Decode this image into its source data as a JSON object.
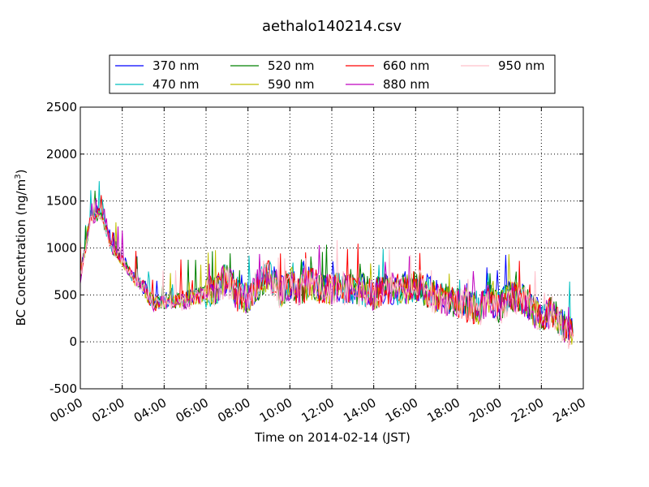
{
  "chart_data": {
    "type": "line",
    "title": "aethalo140214.csv",
    "xlabel": "Time on 2014-02-14 (JST)",
    "ylabel": "BC Concentration (ng/m",
    "ylabel_superscript": "3",
    "ylabel_suffix": ")",
    "xlim": [
      "00:00",
      "24:00"
    ],
    "ylim": [
      -500,
      2500
    ],
    "x_ticks": [
      "00:00",
      "02:00",
      "04:00",
      "06:00",
      "08:00",
      "10:00",
      "12:00",
      "14:00",
      "16:00",
      "18:00",
      "20:00",
      "22:00",
      "24:00"
    ],
    "y_ticks": [
      "-500",
      "0",
      "500",
      "1000",
      "1500",
      "2000",
      "2500"
    ],
    "grid": true,
    "legend_placement": "top-center",
    "x_hours": [
      0,
      0.5,
      1,
      1.5,
      2,
      2.5,
      3,
      3.5,
      4,
      5,
      6,
      6.5,
      7,
      7.5,
      8,
      8.5,
      9,
      9.5,
      10,
      10.5,
      11,
      11.5,
      12,
      12.5,
      13,
      13.5,
      14,
      14.5,
      15,
      15.5,
      16,
      16.5,
      17,
      17.5,
      18,
      18.5,
      19,
      19.5,
      20,
      20.5,
      21,
      21.5,
      22,
      22.5,
      23,
      23.5
    ],
    "series": [
      {
        "name": "370 nm",
        "color": "#0000ff",
        "values": [
          720,
          1350,
          1380,
          1020,
          900,
          700,
          600,
          420,
          450,
          450,
          530,
          560,
          700,
          500,
          480,
          620,
          750,
          550,
          620,
          560,
          640,
          560,
          560,
          580,
          570,
          560,
          520,
          560,
          560,
          570,
          600,
          560,
          490,
          450,
          420,
          390,
          360,
          460,
          380,
          500,
          480,
          390,
          260,
          330,
          200,
          100
        ]
      },
      {
        "name": "470 nm",
        "color": "#00bfbf",
        "values": [
          710,
          1330,
          1360,
          1000,
          890,
          690,
          590,
          420,
          450,
          440,
          520,
          560,
          690,
          490,
          470,
          610,
          740,
          540,
          610,
          550,
          630,
          550,
          550,
          570,
          560,
          550,
          510,
          550,
          550,
          560,
          590,
          550,
          480,
          440,
          410,
          380,
          350,
          450,
          370,
          490,
          470,
          380,
          250,
          320,
          190,
          90
        ]
      },
      {
        "name": "520 nm",
        "color": "#008000",
        "values": [
          700,
          1320,
          1350,
          1000,
          880,
          690,
          590,
          410,
          440,
          440,
          520,
          550,
          690,
          490,
          470,
          610,
          730,
          540,
          600,
          550,
          630,
          550,
          540,
          570,
          560,
          550,
          510,
          550,
          560,
          560,
          590,
          540,
          480,
          440,
          410,
          390,
          350,
          470,
          370,
          490,
          470,
          380,
          250,
          320,
          190,
          90
        ]
      },
      {
        "name": "590 nm",
        "color": "#bfbf00",
        "values": [
          700,
          1310,
          1340,
          990,
          870,
          680,
          580,
          410,
          440,
          430,
          510,
          550,
          680,
          480,
          470,
          600,
          730,
          530,
          600,
          540,
          620,
          560,
          540,
          600,
          560,
          540,
          500,
          540,
          560,
          550,
          580,
          540,
          470,
          430,
          400,
          380,
          340,
          460,
          360,
          480,
          460,
          370,
          240,
          310,
          180,
          80
        ]
      },
      {
        "name": "660 nm",
        "color": "#ff0000",
        "values": [
          690,
          1330,
          1380,
          1000,
          880,
          690,
          590,
          410,
          450,
          440,
          520,
          570,
          690,
          490,
          480,
          620,
          720,
          560,
          610,
          550,
          640,
          560,
          560,
          590,
          570,
          560,
          510,
          560,
          570,
          570,
          590,
          550,
          470,
          440,
          420,
          370,
          350,
          460,
          360,
          500,
          450,
          380,
          200,
          330,
          170,
          60
        ]
      },
      {
        "name": "880 nm",
        "color": "#bf00bf",
        "values": [
          680,
          1310,
          1360,
          1000,
          870,
          690,
          580,
          400,
          440,
          430,
          510,
          580,
          670,
          480,
          470,
          640,
          700,
          540,
          600,
          540,
          640,
          560,
          560,
          570,
          560,
          540,
          500,
          560,
          580,
          560,
          600,
          540,
          460,
          430,
          430,
          380,
          340,
          470,
          340,
          490,
          460,
          370,
          220,
          330,
          170,
          50
        ]
      },
      {
        "name": "950 nm",
        "color": "#ffc0cb",
        "values": [
          670,
          1300,
          1340,
          990,
          860,
          680,
          570,
          400,
          430,
          420,
          500,
          570,
          650,
          470,
          460,
          630,
          690,
          530,
          590,
          540,
          650,
          550,
          560,
          560,
          560,
          530,
          490,
          560,
          580,
          540,
          590,
          530,
          440,
          420,
          420,
          370,
          320,
          460,
          320,
          470,
          450,
          360,
          210,
          320,
          150,
          30
        ]
      }
    ]
  }
}
